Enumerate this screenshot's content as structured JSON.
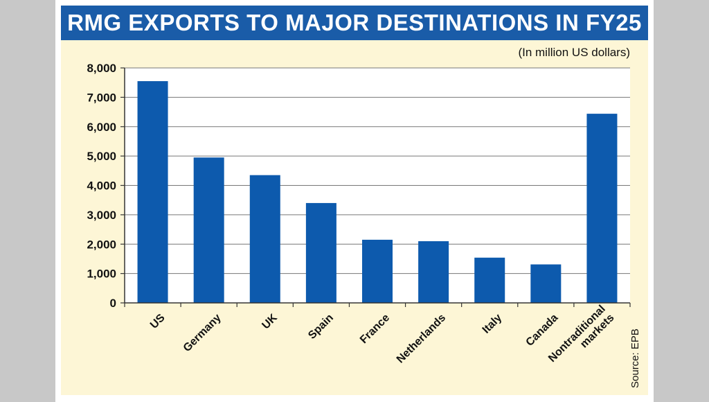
{
  "chart_data": {
    "type": "bar",
    "title": "RMG EXPORTS TO MAJOR DESTINATIONS IN FY25",
    "unit_note": "(In million US dollars)",
    "source": "Source: EPB",
    "categories": [
      "US",
      "Germany",
      "UK",
      "Spain",
      "France",
      "Netherlands",
      "Italy",
      "Canada",
      "Nontraditional markets"
    ],
    "category_lines": [
      [
        "US"
      ],
      [
        "Germany"
      ],
      [
        "UK"
      ],
      [
        "Spain"
      ],
      [
        "France"
      ],
      [
        "Netherlands"
      ],
      [
        "Italy"
      ],
      [
        "Canada"
      ],
      [
        "Nontraditional",
        "markets"
      ]
    ],
    "values": [
      7550,
      4950,
      4350,
      3400,
      2150,
      2100,
      1540,
      1310,
      6440
    ],
    "ylim": [
      0,
      8000
    ],
    "yticks": [
      0,
      1000,
      2000,
      3000,
      4000,
      5000,
      6000,
      7000,
      8000
    ],
    "ytick_labels": [
      "0",
      "1,000",
      "2,000",
      "3,000",
      "4,000",
      "5,000",
      "6,000",
      "7,000",
      "8,000"
    ],
    "grid": true,
    "bar_color": "#0d5aad"
  }
}
